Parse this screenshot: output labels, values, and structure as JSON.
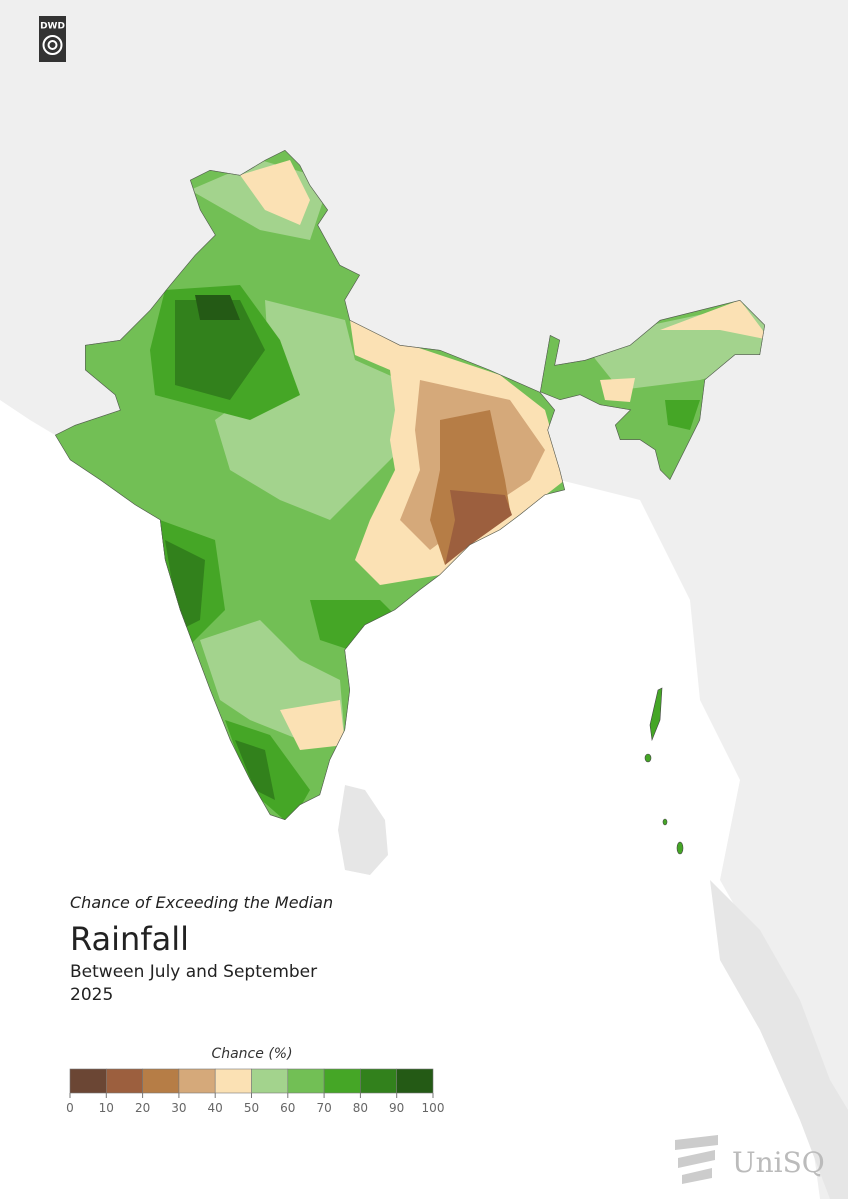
{
  "logo": "DWD",
  "subtitle": "Chance of Exceeding the Median",
  "title": "Rainfall",
  "period": "Between July and September",
  "year": "2025",
  "legend": {
    "title": "Chance (%)",
    "ticks": [
      0,
      10,
      20,
      30,
      40,
      50,
      60,
      70,
      80,
      90,
      100
    ],
    "colors": [
      "#6b4634",
      "#9c5f3e",
      "#b67d46",
      "#d5a97a",
      "#fbe1b4",
      "#a3d38d",
      "#72bf55",
      "#45a626",
      "#32811c",
      "#245a15"
    ]
  },
  "brand": "UniSQ"
}
